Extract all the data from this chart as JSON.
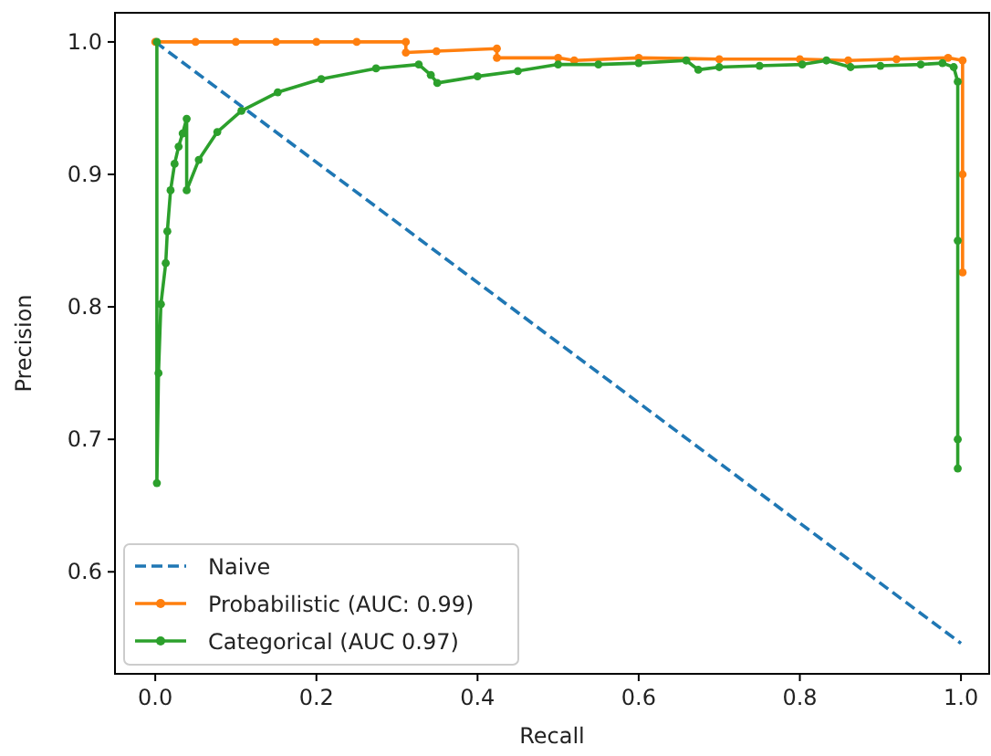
{
  "chart_data": {
    "type": "line",
    "xlabel": "Recall",
    "ylabel": "Precision",
    "xlim": [
      -0.05,
      1.035
    ],
    "ylim": [
      0.523,
      1.022
    ],
    "xticks": [
      {
        "value": 0,
        "label": "0.0"
      },
      0.2,
      0.4,
      0.6,
      0.8,
      {
        "value": 1,
        "label": "1.0"
      }
    ],
    "yticks": [
      0.6,
      0.7,
      0.8,
      0.9,
      {
        "value": 1,
        "label": "1.0"
      }
    ],
    "legend": "bottom left",
    "grid": false,
    "series": [
      {
        "name": "Naive",
        "color": "#1f77b4",
        "line_style": "dashed",
        "marker": "none",
        "x": [
          0,
          1
        ],
        "values": [
          1,
          0.546
        ]
      },
      {
        "name": "Probabilistic (AUC: 0.99)",
        "color": "#ff7f0e",
        "line_style": "solid",
        "marker": "circle",
        "x": [
          0,
          0.05,
          0.1,
          0.15,
          0.2,
          0.25,
          0.311,
          0.311,
          0.349,
          0.424,
          0.424,
          0.5,
          0.52,
          0.6,
          0.7,
          0.8,
          0.86,
          0.92,
          0.984,
          1.002,
          1.002,
          1.002
        ],
        "values": [
          1,
          1,
          1,
          1,
          1,
          1,
          1,
          0.992,
          0.993,
          0.995,
          0.988,
          0.988,
          0.986,
          0.988,
          0.987,
          0.987,
          0.986,
          0.987,
          0.988,
          0.986,
          0.9,
          0.826
        ]
      },
      {
        "name": "Categorical (AUC 0.97)",
        "color": "#2ca02c",
        "line_style": "solid",
        "marker": "circle",
        "x": [
          0.002,
          0.002,
          0.004,
          0.007,
          0.013,
          0.015,
          0.019,
          0.024,
          0.029,
          0.034,
          0.039,
          0.039,
          0.054,
          0.077,
          0.107,
          0.152,
          0.206,
          0.274,
          0.327,
          0.342,
          0.35,
          0.4,
          0.45,
          0.5,
          0.55,
          0.6,
          0.659,
          0.674,
          0.7,
          0.75,
          0.803,
          0.833,
          0.863,
          0.9,
          0.95,
          0.977,
          0.991,
          0.996,
          0.996,
          0.996,
          0.996
        ],
        "values": [
          1,
          0.667,
          0.75,
          0.802,
          0.833,
          0.857,
          0.888,
          0.908,
          0.921,
          0.931,
          0.942,
          0.888,
          0.911,
          0.932,
          0.948,
          0.962,
          0.972,
          0.98,
          0.983,
          0.975,
          0.969,
          0.974,
          0.978,
          0.983,
          0.983,
          0.984,
          0.986,
          0.979,
          0.981,
          0.982,
          0.983,
          0.986,
          0.981,
          0.982,
          0.983,
          0.984,
          0.981,
          0.97,
          0.85,
          0.7,
          0.678
        ]
      }
    ]
  }
}
